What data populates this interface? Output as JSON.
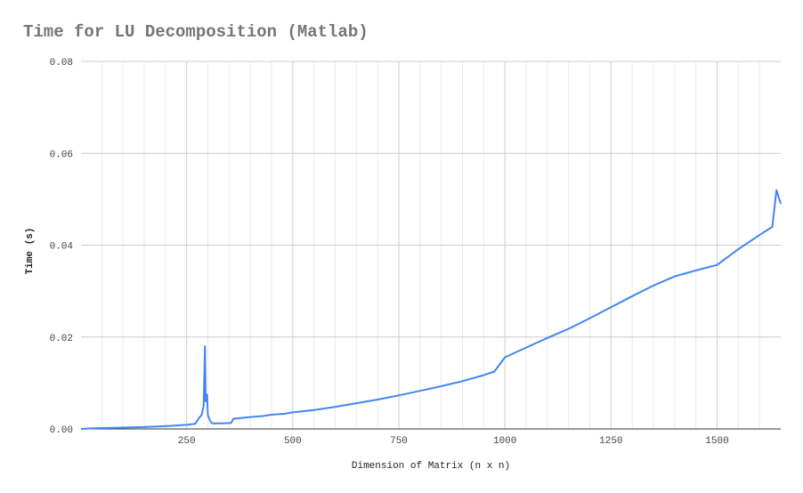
{
  "chart_data": {
    "type": "line",
    "title": "Time for LU Decomposition (Matlab)",
    "xlabel": "Dimension of Matrix (n x n)",
    "ylabel": "Time (s)",
    "xlim": [
      1,
      1650
    ],
    "ylim": [
      0,
      0.08
    ],
    "x_ticks": [
      250,
      500,
      750,
      1000,
      1250,
      1500
    ],
    "x_tick_labels": [
      "250",
      "500",
      "750",
      "1000",
      "1250",
      "1500"
    ],
    "y_ticks": [
      0,
      0.02,
      0.04,
      0.06,
      0.08
    ],
    "y_tick_labels": [
      "0.00",
      "0.02",
      "0.04",
      "0.06",
      "0.08"
    ],
    "minor_x_gridlines": true,
    "grid": true,
    "legend": "none",
    "series": [
      {
        "color": "#4285f4",
        "x": [
          1,
          20,
          50,
          100,
          150,
          200,
          250,
          270,
          280,
          285,
          290,
          293,
          295,
          298,
          300,
          305,
          310,
          330,
          355,
          360,
          380,
          400,
          430,
          450,
          480,
          500,
          550,
          600,
          650,
          700,
          750,
          800,
          850,
          900,
          950,
          975,
          1000,
          1050,
          1100,
          1150,
          1200,
          1250,
          1300,
          1350,
          1400,
          1450,
          1500,
          1550,
          1600,
          1630,
          1640,
          1650
        ],
        "values": [
          0.0,
          0.0001,
          0.0002,
          0.0003,
          0.0004,
          0.0006,
          0.0009,
          0.0011,
          0.0025,
          0.003,
          0.005,
          0.018,
          0.006,
          0.0075,
          0.003,
          0.0018,
          0.0012,
          0.0012,
          0.0013,
          0.0022,
          0.0024,
          0.0026,
          0.0028,
          0.0031,
          0.0033,
          0.0036,
          0.0041,
          0.0048,
          0.0056,
          0.0064,
          0.0073,
          0.0083,
          0.0093,
          0.0104,
          0.0117,
          0.0125,
          0.0156,
          0.0177,
          0.0198,
          0.0218,
          0.0241,
          0.0265,
          0.0289,
          0.0312,
          0.0332,
          0.0345,
          0.0357,
          0.0391,
          0.0422,
          0.044,
          0.052,
          0.049
        ]
      }
    ]
  }
}
